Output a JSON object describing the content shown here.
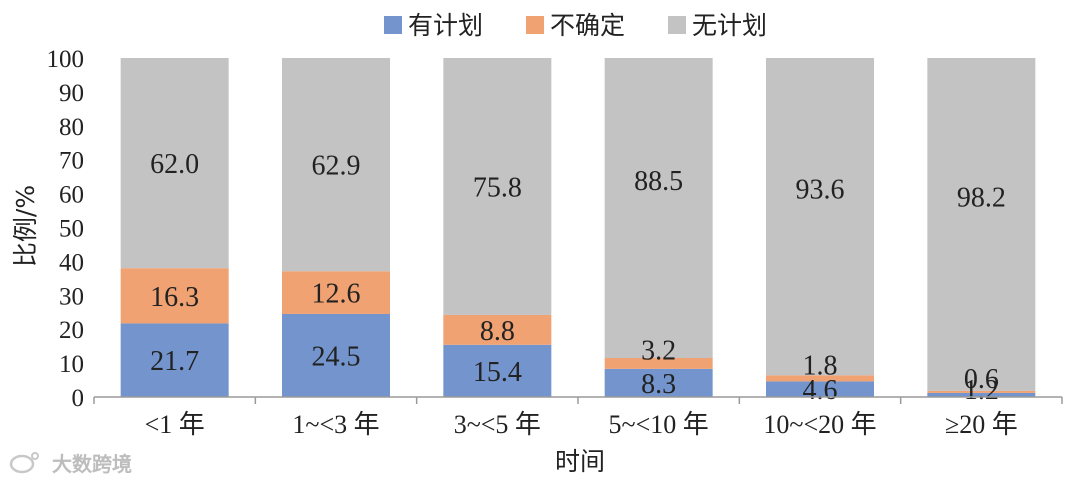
{
  "chart_data": {
    "type": "bar",
    "stacked": true,
    "categories": [
      "<1 年",
      "1~<3 年",
      "3~<5 年",
      "5~<10 年",
      "10~<20 年",
      "≥20 年"
    ],
    "series": [
      {
        "name": "有计划",
        "color": "#7394cc",
        "values": [
          21.7,
          24.5,
          15.4,
          8.3,
          4.6,
          1.2
        ]
      },
      {
        "name": "不确定",
        "color": "#f0a273",
        "values": [
          16.3,
          12.6,
          8.8,
          3.2,
          1.8,
          0.6
        ]
      },
      {
        "name": "无计划",
        "color": "#c3c3c3",
        "values": [
          62.0,
          62.9,
          75.8,
          88.5,
          93.6,
          98.2
        ]
      }
    ],
    "xlabel": "时间",
    "ylabel": "比例/%",
    "ylim": [
      0,
      100
    ],
    "yticks": [
      "0",
      "10",
      "20",
      "30",
      "40",
      "50",
      "60",
      "70",
      "80",
      "90",
      "100"
    ],
    "labels": [
      [
        "21.7",
        "16.3",
        "62.0"
      ],
      [
        "24.5",
        "12.6",
        "62.9"
      ],
      [
        "15.4",
        "8.8",
        "75.8"
      ],
      [
        "8.3",
        "3.2",
        "88.5"
      ],
      [
        "4.6",
        "1.8",
        "93.6"
      ],
      [
        "1.2",
        "0.6",
        "98.2"
      ]
    ],
    "legend": "top",
    "grid": false
  },
  "watermark": "大数跨境",
  "watermark_icon": "weibo-logo-icon"
}
